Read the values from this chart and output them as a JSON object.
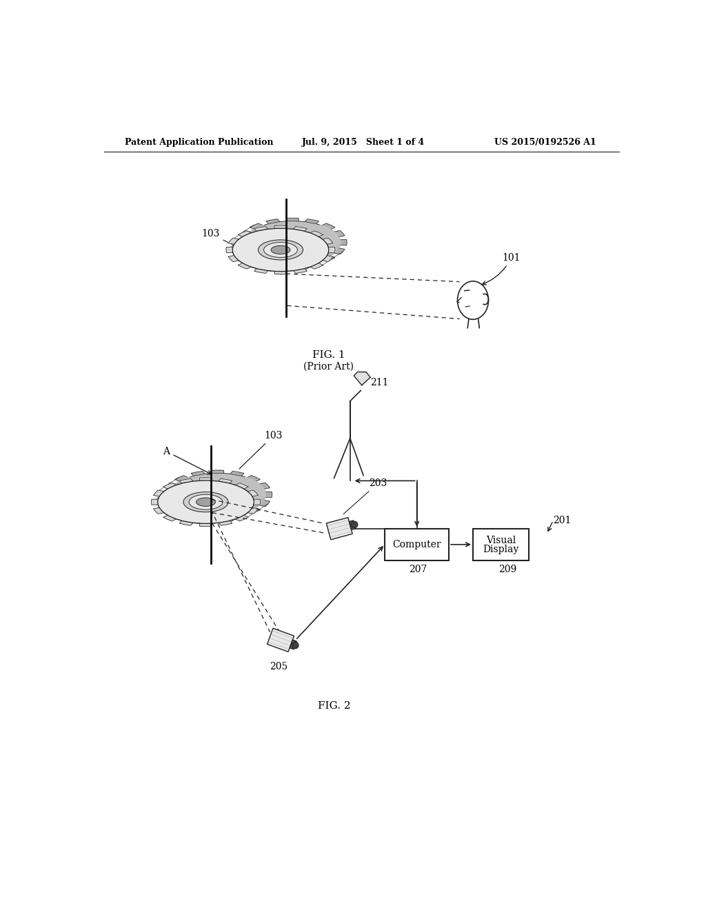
{
  "background_color": "#ffffff",
  "header_left": "Patent Application Publication",
  "header_mid": "Jul. 9, 2015   Sheet 1 of 4",
  "header_right": "US 2015/0192526 A1",
  "fig1_label": "FIG. 1",
  "fig1_sublabel": "(Prior Art)",
  "fig2_label": "FIG. 2",
  "label_103_fig1": "103",
  "label_101": "101",
  "label_103_fig2": "103",
  "label_211": "211",
  "label_203": "203",
  "label_205": "205",
  "label_207": "207",
  "label_209": "209",
  "label_201": "201",
  "label_A": "A",
  "computer_text": "Computer",
  "visual_display_text1": "Visual",
  "visual_display_text2": "Display",
  "line_color": "#222222",
  "gear_face_color": "#e8e8e8",
  "gear_side_color": "#c0c0c0",
  "gear_hub_color": "#d0d0d0",
  "gear_hole_color": "#a0a0a0"
}
